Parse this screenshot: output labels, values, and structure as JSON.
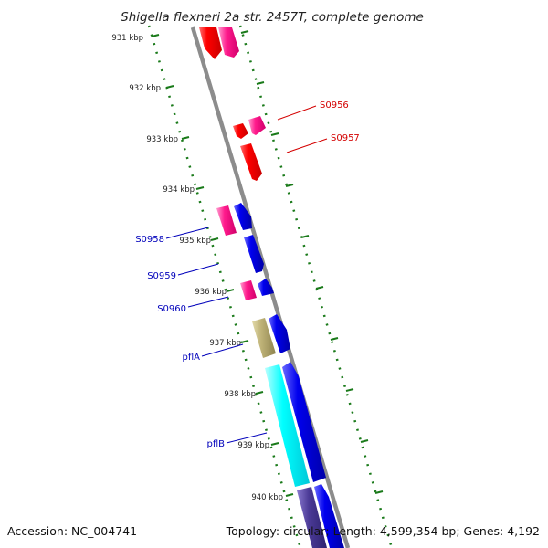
{
  "title": "Shigella flexneri 2a str. 2457T, complete genome",
  "footer": {
    "accession": "Accession: NC_004741",
    "summary": "Topology: circular; Length: 4,599,354 bp; Genes: 4,192"
  },
  "ticks": [
    "931 kbp",
    "932 kbp",
    "933 kbp",
    "934 kbp",
    "935 kbp",
    "936 kbp",
    "937 kbp",
    "938 kbp",
    "939 kbp",
    "940 kbp"
  ],
  "colors": {
    "backbone": "#8c8c8c",
    "tick_mark": "#1a7a1a",
    "red_gene": "#ff0000",
    "pink_gene": "#ff1a8c",
    "blue_gene": "#0000ee",
    "olive_gene": "#bdb176",
    "cyan_gene": "#00ffff",
    "purple_gene": "#4b3a96",
    "red_label": "#d40000",
    "blue_label": "#0000bb"
  },
  "labels": {
    "s0956": "S0956",
    "s0957": "S0957",
    "s0958": "S0958",
    "s0959": "S0959",
    "s0960": "S0960",
    "pflA": "pflA",
    "pflB": "pflB"
  }
}
